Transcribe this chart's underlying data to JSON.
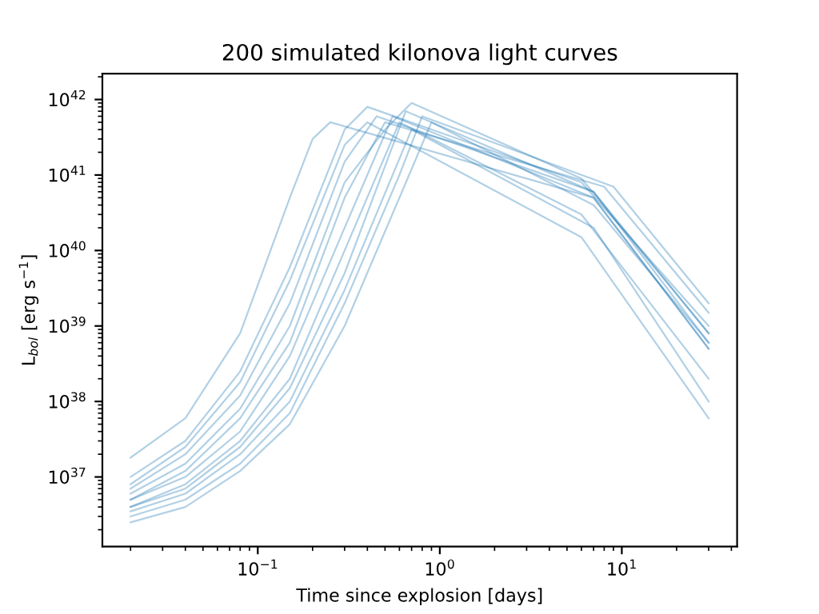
{
  "chart_data": {
    "type": "line",
    "title": "200 simulated kilonova light curves",
    "xlabel": "Time since explosion [days]",
    "ylabel": "L$_{bol}$ [erg s$^{−1}$]",
    "log": "xy",
    "grid": false,
    "legend": false,
    "line_style": "solid",
    "marker": "none",
    "xlim": [
      0.014,
      43
    ],
    "ylim": [
      1.2e+36,
      2.2e+42
    ],
    "xticks": [
      {
        "value": 0.1,
        "label": "10$^{−1}$"
      },
      {
        "value": 1,
        "label": "10$^{0}$"
      },
      {
        "value": 10,
        "label": "10$^{1}$"
      }
    ],
    "yticks": [
      {
        "value": 1e+37,
        "label": "10$^{37}$"
      },
      {
        "value": 1e+38,
        "label": "10$^{38}$"
      },
      {
        "value": 1e+39,
        "label": "10$^{39}$"
      },
      {
        "value": 1e+40,
        "label": "10$^{40}$"
      },
      {
        "value": 1e+41,
        "label": "10$^{41}$"
      },
      {
        "value": 1e+42,
        "label": "10$^{42}$"
      }
    ],
    "series": [
      {
        "color": "#1f77b4",
        "x": [
          0.02,
          0.04,
          0.08,
          0.15,
          0.2,
          0.25,
          7,
          30
        ],
        "values": [
          1.8e+37,
          6e+37,
          8e+38,
          5e+40,
          3e+41,
          5e+41,
          5e+40,
          5e+38
        ]
      },
      {
        "color": "#1f77b4",
        "x": [
          0.02,
          0.04,
          0.08,
          0.15,
          0.3,
          0.4,
          6,
          30
        ],
        "values": [
          1e+37,
          3e+37,
          2.5e+38,
          6e+39,
          4e+41,
          8e+41,
          8e+40,
          1e+39
        ]
      },
      {
        "color": "#1f77b4",
        "x": [
          0.02,
          0.04,
          0.08,
          0.15,
          0.3,
          0.45,
          7,
          30
        ],
        "values": [
          7e+36,
          2e+37,
          1.2e+38,
          2e+39,
          1.5e+41,
          6e+41,
          6e+40,
          8e+38
        ]
      },
      {
        "color": "#1f77b4",
        "x": [
          0.02,
          0.04,
          0.08,
          0.15,
          0.3,
          0.5,
          8,
          30
        ],
        "values": [
          5e+36,
          1.2e+37,
          6e+37,
          6e+38,
          5e+40,
          5e+41,
          7e+40,
          1.5e+39
        ]
      },
      {
        "color": "#1f77b4",
        "x": [
          0.02,
          0.04,
          0.08,
          0.15,
          0.3,
          0.55,
          7,
          30
        ],
        "values": [
          5e+36,
          1e+37,
          4e+37,
          4e+38,
          2e+40,
          6e+41,
          5e+40,
          5e+38
        ]
      },
      {
        "color": "#1f77b4",
        "x": [
          0.02,
          0.04,
          0.08,
          0.15,
          0.3,
          0.6,
          6,
          30
        ],
        "values": [
          4e+36,
          8e+36,
          3e+37,
          2e+38,
          1e+40,
          5e+41,
          3e+40,
          2e+38
        ]
      },
      {
        "color": "#1f77b4",
        "x": [
          0.02,
          0.04,
          0.08,
          0.15,
          0.3,
          0.65,
          7,
          30
        ],
        "values": [
          4e+36,
          7e+36,
          2.5e+37,
          1.5e+38,
          5e+39,
          7e+41,
          6e+40,
          6e+38
        ]
      },
      {
        "color": "#1f77b4",
        "x": [
          0.02,
          0.04,
          0.08,
          0.15,
          0.3,
          0.7,
          7,
          30
        ],
        "values": [
          3.5e+36,
          6e+36,
          2e+37,
          1e+38,
          3e+39,
          4e+41,
          2e+40,
          1e+38
        ]
      },
      {
        "color": "#1f77b4",
        "x": [
          0.02,
          0.04,
          0.08,
          0.15,
          0.3,
          0.6,
          0.8,
          9,
          30
        ],
        "values": [
          3e+36,
          5e+36,
          1.5e+37,
          7e+37,
          2e+39,
          1e+41,
          6e+41,
          7e+40,
          2e+39
        ]
      },
      {
        "color": "#1f77b4",
        "x": [
          0.02,
          0.04,
          0.08,
          0.15,
          0.3,
          0.6,
          0.9,
          7,
          30
        ],
        "values": [
          2.5e+36,
          4e+36,
          1.2e+37,
          5e+37,
          1e+39,
          5e+40,
          5e+41,
          4e+40,
          6e+38
        ]
      },
      {
        "color": "#1f77b4",
        "x": [
          0.02,
          0.04,
          0.08,
          0.15,
          0.3,
          0.5,
          0.7,
          6,
          30
        ],
        "values": [
          6e+36,
          1.5e+37,
          8e+37,
          1e+39,
          8e+40,
          4e+41,
          9e+41,
          9e+40,
          8e+38
        ]
      },
      {
        "color": "#1f77b4",
        "x": [
          0.02,
          0.04,
          0.08,
          0.15,
          0.3,
          0.4,
          6,
          30
        ],
        "values": [
          8e+36,
          2.5e+37,
          1.8e+38,
          4e+39,
          2.5e+41,
          5e+41,
          1.5e+40,
          6e+37
        ]
      }
    ]
  }
}
